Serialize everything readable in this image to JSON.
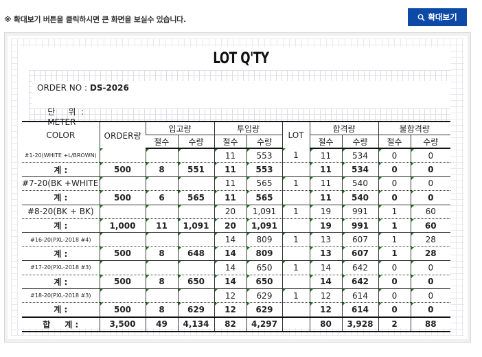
{
  "notice": "※ 확대보기 버튼을 클릭하시면 큰 화면을 보실수 있습니다.",
  "zoom_button": {
    "label": "확대보기",
    "icon": "magnifier-icon"
  },
  "doc": {
    "title": "LOT Q'TY",
    "order_no_label": "ORDER NO :",
    "order_no": "DS-2026",
    "unit_label": "단     위  :",
    "unit": "METER"
  },
  "headers": {
    "color": "COLOR",
    "order_qty": "ORDER량",
    "receipt": "입고량",
    "input": "투입량",
    "lot": "LOT",
    "pass": "합격량",
    "fail": "불합격량",
    "cuts": "절수",
    "qty": "수량"
  },
  "rows": [
    {
      "color": "#1-20(WHITE +L/BROWN)",
      "in_c": "",
      "in_q": "",
      "inp_c": "11",
      "inp_q": "553",
      "lot": "1",
      "p_c": "11",
      "p_q": "534",
      "f_c": "0",
      "f_q": "0",
      "sum": {
        "label": "계 :",
        "order": "500",
        "in_c": "8",
        "in_q": "551",
        "inp_c": "11",
        "inp_q": "553",
        "p_c": "11",
        "p_q": "534",
        "f_c": "0",
        "f_q": "0"
      }
    },
    {
      "color": "#7-20(BK +WHITE)",
      "in_c": "",
      "in_q": "",
      "inp_c": "11",
      "inp_q": "565",
      "lot": "1",
      "p_c": "11",
      "p_q": "540",
      "f_c": "0",
      "f_q": "0",
      "sum": {
        "label": "계 :",
        "order": "500",
        "in_c": "6",
        "in_q": "565",
        "inp_c": "11",
        "inp_q": "565",
        "p_c": "11",
        "p_q": "540",
        "f_c": "0",
        "f_q": "0"
      }
    },
    {
      "color": "#8-20(BK + BK)",
      "in_c": "",
      "in_q": "",
      "inp_c": "20",
      "inp_q": "1,091",
      "lot": "1",
      "p_c": "19",
      "p_q": "991",
      "f_c": "1",
      "f_q": "60",
      "sum": {
        "label": "계 :",
        "order": "1,000",
        "in_c": "11",
        "in_q": "1,091",
        "inp_c": "20",
        "inp_q": "1,091",
        "p_c": "19",
        "p_q": "991",
        "f_c": "1",
        "f_q": "60"
      }
    },
    {
      "color": "#16-20(PXL-2018 #4)",
      "in_c": "",
      "in_q": "",
      "inp_c": "14",
      "inp_q": "809",
      "lot": "1",
      "p_c": "13",
      "p_q": "607",
      "f_c": "1",
      "f_q": "28",
      "sum": {
        "label": "계 :",
        "order": "500",
        "in_c": "8",
        "in_q": "648",
        "inp_c": "14",
        "inp_q": "809",
        "p_c": "13",
        "p_q": "607",
        "f_c": "1",
        "f_q": "28"
      }
    },
    {
      "color": "#17-20(PXL-2018 #3)",
      "in_c": "",
      "in_q": "",
      "inp_c": "14",
      "inp_q": "650",
      "lot": "1",
      "p_c": "14",
      "p_q": "642",
      "f_c": "0",
      "f_q": "0",
      "sum": {
        "label": "계 :",
        "order": "500",
        "in_c": "8",
        "in_q": "650",
        "inp_c": "14",
        "inp_q": "650",
        "p_c": "14",
        "p_q": "642",
        "f_c": "0",
        "f_q": "0"
      }
    },
    {
      "color": "#18-20(PXL-2018 #3)",
      "in_c": "",
      "in_q": "",
      "inp_c": "12",
      "inp_q": "629",
      "lot": "1",
      "p_c": "12",
      "p_q": "614",
      "f_c": "0",
      "f_q": "0",
      "sum": {
        "label": "계 :",
        "order": "500",
        "in_c": "8",
        "in_q": "629",
        "inp_c": "12",
        "inp_q": "629",
        "p_c": "12",
        "p_q": "614",
        "f_c": "0",
        "f_q": "0"
      }
    }
  ],
  "total": {
    "label": "합     계 :",
    "order": "3,500",
    "in_c": "49",
    "in_q": "4,134",
    "inp_c": "82",
    "inp_q": "4,297",
    "p_c": "80",
    "p_q": "3,928",
    "f_c": "2",
    "f_q": "88"
  }
}
